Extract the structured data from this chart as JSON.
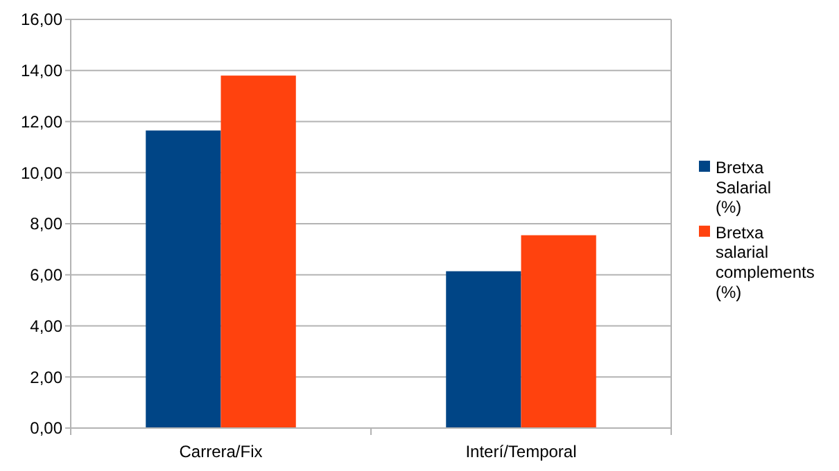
{
  "chart_data": {
    "type": "bar",
    "categories": [
      "Carrera/Fix",
      "Interí/Temporal"
    ],
    "series": [
      {
        "name": "Bretxa Salarial (%)",
        "color": "#004586",
        "values": [
          11.65,
          6.14
        ]
      },
      {
        "name": "Bretxa salarial complements (%)",
        "color": "#ff420e",
        "values": [
          13.8,
          7.55
        ]
      }
    ],
    "ylim": [
      0,
      16
    ],
    "yticks": [
      {
        "value": 0,
        "label": "0,00"
      },
      {
        "value": 2,
        "label": "2,00"
      },
      {
        "value": 4,
        "label": "4,00"
      },
      {
        "value": 6,
        "label": "6,00"
      },
      {
        "value": 8,
        "label": "8,00"
      },
      {
        "value": 10,
        "label": "10,00"
      },
      {
        "value": 12,
        "label": "12,00"
      },
      {
        "value": 14,
        "label": "14,00"
      },
      {
        "value": 16,
        "label": "16,00"
      }
    ],
    "grid": "y",
    "legend": "right"
  }
}
